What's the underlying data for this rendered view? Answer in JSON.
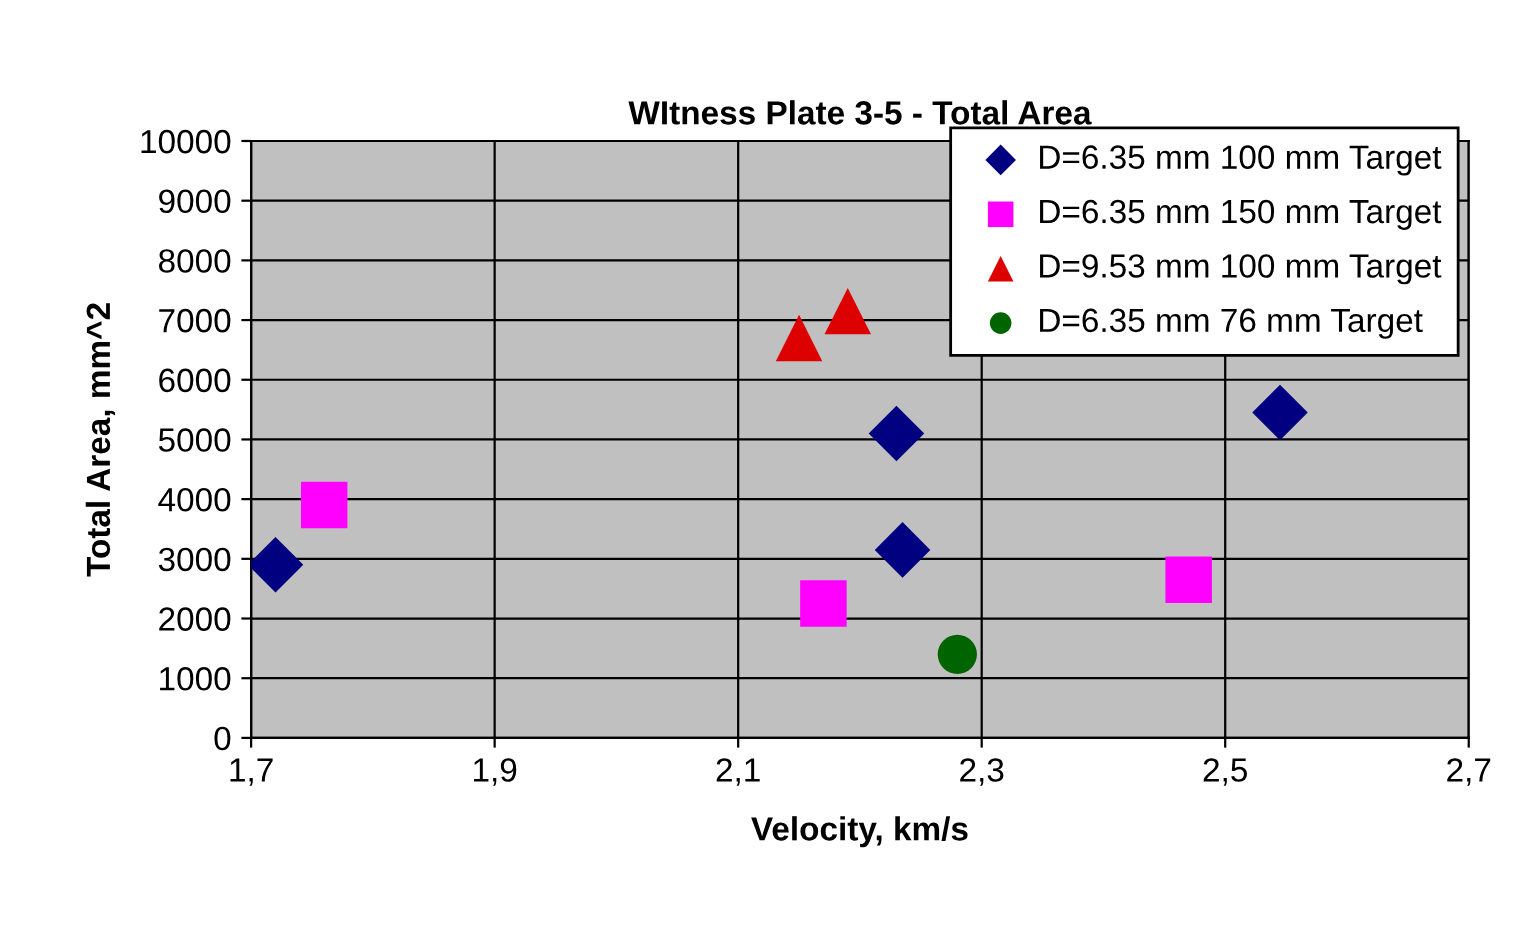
{
  "chart_data": {
    "type": "scatter",
    "title": "WItness Plate 3-5 - Total Area",
    "xlabel": "Velocity, km/s",
    "ylabel": "Total Area, mm^2",
    "xlim": [
      1.7,
      2.7
    ],
    "xticks": [
      {
        "value": 1.7,
        "label": "1,7"
      },
      {
        "value": 1.9,
        "label": "1,9"
      },
      {
        "value": 2.1,
        "label": "2,1"
      },
      {
        "value": 2.3,
        "label": "2,3"
      },
      {
        "value": 2.5,
        "label": "2,5"
      },
      {
        "value": 2.7,
        "label": "2,7"
      }
    ],
    "ylim": [
      0,
      10000
    ],
    "yticks": [
      0,
      1000,
      2000,
      3000,
      4000,
      5000,
      6000,
      7000,
      8000,
      9000,
      10000
    ],
    "grid": true,
    "legend": "top right",
    "series": [
      {
        "name": "D=6.35 mm 100 mm Target",
        "color": "#000080",
        "marker": "diamond",
        "x": [
          1.72,
          2.23,
          2.235,
          2.545
        ],
        "values": [
          2900,
          5100,
          3150,
          5450
        ]
      },
      {
        "name": "D=6.35 mm 150 mm Target",
        "color": "#ff00ff",
        "marker": "square",
        "x": [
          1.76,
          2.17,
          2.47
        ],
        "values": [
          3900,
          2250,
          2650
        ]
      },
      {
        "name": "D=9.53 mm 100 mm Target",
        "color": "#dd0000",
        "marker": "triangle",
        "x": [
          2.15,
          2.19
        ],
        "values": [
          6700,
          7150
        ]
      },
      {
        "name": "D=6.35 mm 76 mm Target",
        "color": "#006400",
        "marker": "circle",
        "x": [
          2.28
        ],
        "values": [
          1400
        ]
      }
    ]
  }
}
